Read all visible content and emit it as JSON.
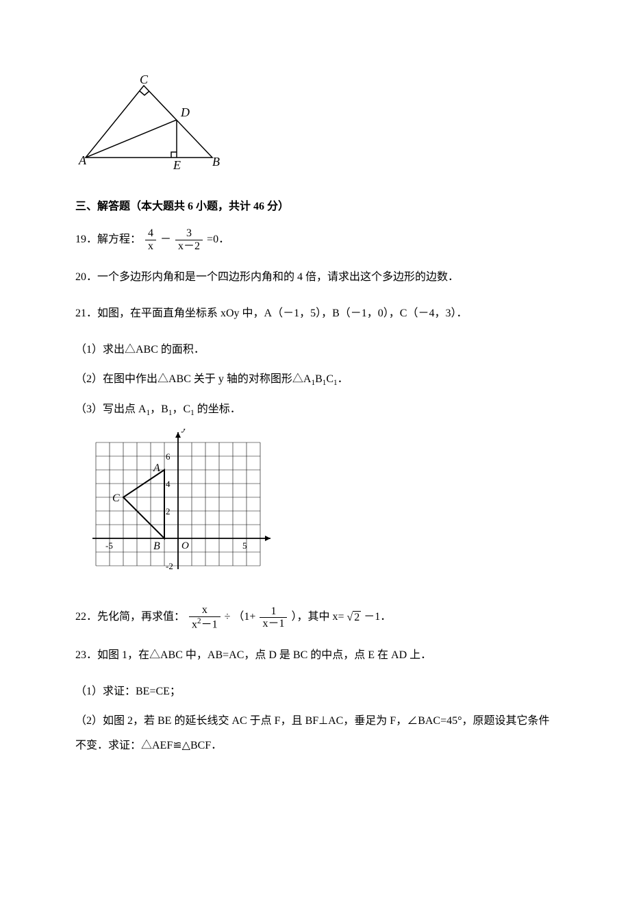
{
  "triangle_fig": {
    "labels": {
      "A": "A",
      "B": "B",
      "C": "C",
      "D": "D",
      "E": "E"
    },
    "stroke": "#000000",
    "right_angle_marker": true
  },
  "section3_title": "三、解答题（本大题共 6 小题，共计 46 分）",
  "q19": {
    "prefix": "19．解方程：",
    "frac1_num": "4",
    "frac1_den": "x",
    "minus": "－",
    "frac2_num": "3",
    "frac2_den": "x－2",
    "suffix": "=0．"
  },
  "q20": "20．一个多边形内角和是一个四边形内角和的 4 倍，请求出这个多边形的边数．",
  "q21": {
    "line": "21．如图，在平面直角坐标系 xOy 中，A（－1，5），B（－1，0），C（－4，3）．",
    "s1": "（1）求出△ABC 的面积．",
    "s2_a": "（2）在图中作出△ABC 关于 y 轴的对称图形△A",
    "s2_b": "B",
    "s2_c": "C",
    "s2_d": "．",
    "s3_a": "（3）写出点 A",
    "s3_b": "，B",
    "s3_c": "，C",
    "s3_d": " 的坐标．",
    "grid": {
      "x_min": -6,
      "x_max": 6,
      "y_min": -2,
      "y_max": 7,
      "cell": 20,
      "points": {
        "A": [
          -1,
          5
        ],
        "B": [
          -1,
          0
        ],
        "C": [
          -4,
          3
        ]
      },
      "x_label": "x",
      "y_label": "y",
      "origin_label": "O",
      "x_tick_labels": {
        "-5": "-5",
        "5": "5"
      },
      "y_tick_labels": {
        "-2": "-2",
        "2": "2",
        "4": "4",
        "6": "6"
      },
      "stroke": "#000000"
    }
  },
  "q22": {
    "prefix": "22．先化简，再求值：",
    "f1_num": "x",
    "f1_den_a": "x",
    "f1_den_exp": "2",
    "f1_den_b": "－1",
    "div": "÷",
    "paren_open": "（1+",
    "f2_num": "1",
    "f2_den": "x－1",
    "paren_close": "），其中 x=",
    "sqrt_val": "2",
    "tail": "－1．"
  },
  "q23": {
    "line": "23．如图 1，在△ABC 中，AB=AC，点 D 是 BC 的中点，点 E 在 AD 上．",
    "s1": "（1）求证：BE=CE；",
    "s2": "（2）如图 2，若 BE 的延长线交 AC 于点 F，且 BF⊥AC，垂足为 F，∠BAC=45°，原题设其它条件不变．求证：△AEF≌△BCF．"
  }
}
